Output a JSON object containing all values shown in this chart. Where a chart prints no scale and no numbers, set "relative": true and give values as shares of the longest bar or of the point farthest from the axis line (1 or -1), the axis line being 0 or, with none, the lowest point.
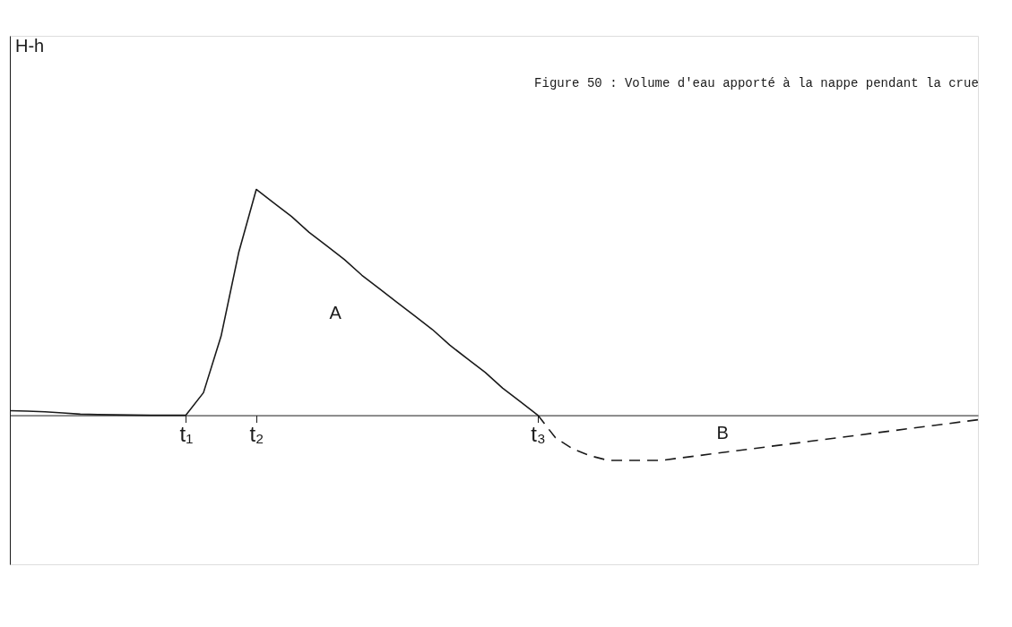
{
  "chart_data": {
    "type": "line",
    "title": "Figure 50 : Volume d'eau apporté à la nappe pendant la crue",
    "relative": true,
    "categories": [
      null,
      null,
      null,
      null,
      null,
      null,
      null,
      null,
      null,
      null,
      "t₁",
      null,
      null,
      null,
      "t₂",
      null,
      null,
      null,
      null,
      null,
      null,
      null,
      null,
      null,
      null,
      null,
      null,
      null,
      null,
      null,
      "t₃",
      null,
      null,
      null,
      null,
      null,
      null,
      null,
      null,
      null,
      null,
      null,
      null,
      null,
      null,
      null,
      null,
      null,
      null,
      null,
      null,
      null,
      null,
      null,
      null,
      null
    ],
    "tick_labels": "x",
    "grid": false,
    "marker": "none",
    "series": [
      {
        "color": "#1a1a1a",
        "line_style": "solid",
        "values": [
          0.02,
          0.018,
          0.015,
          0.01,
          0.005,
          0.003,
          0.002,
          0.001,
          0,
          0,
          0,
          0.1,
          0.35,
          0.72,
          1.0,
          0.94,
          0.88,
          0.81,
          0.75,
          0.69,
          0.62,
          0.56,
          0.5,
          0.44,
          0.38,
          0.31,
          0.25,
          0.19,
          0.12,
          0.06,
          0,
          null,
          null,
          null,
          null,
          null,
          null,
          null,
          null,
          null,
          null,
          null,
          null,
          null,
          null,
          null,
          null,
          null,
          null,
          null,
          null,
          null,
          null,
          null,
          null,
          null
        ]
      },
      {
        "color": "#1a1a1a",
        "line_style": "dashed",
        "values": [
          null,
          null,
          null,
          null,
          null,
          null,
          null,
          null,
          null,
          null,
          null,
          null,
          null,
          null,
          null,
          null,
          null,
          null,
          null,
          null,
          null,
          null,
          null,
          null,
          null,
          null,
          null,
          null,
          null,
          null,
          0,
          -0.1,
          -0.15,
          -0.18,
          -0.2,
          -0.2,
          -0.2,
          -0.2,
          -0.19,
          -0.18,
          -0.17,
          -0.16,
          -0.15,
          -0.14,
          -0.13,
          -0.12,
          -0.11,
          -0.1,
          -0.09,
          -0.08,
          -0.07,
          -0.06,
          -0.05,
          -0.04,
          -0.03,
          -0.02
        ]
      }
    ],
    "annotations": [
      "H-h",
      "A",
      "B"
    ]
  }
}
